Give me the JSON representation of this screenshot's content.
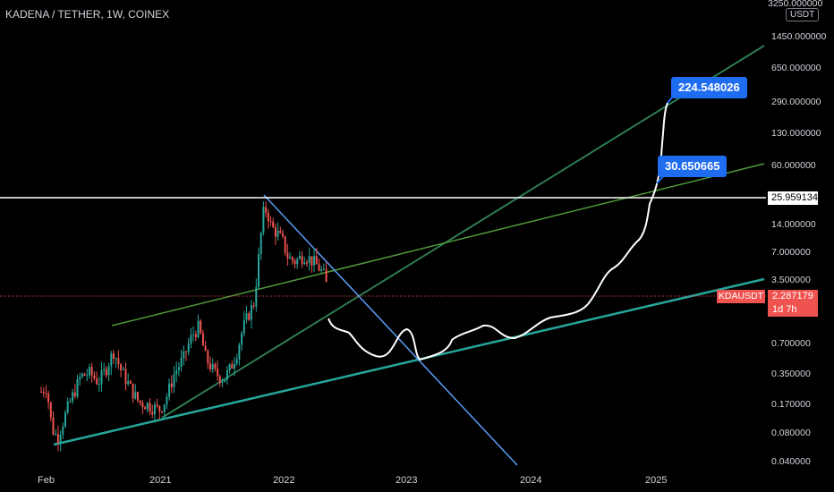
{
  "header": {
    "title": "KADENA / TETHER, 1W, COINEX"
  },
  "price_axis": {
    "currency": "USDT",
    "labels": [
      "3250.000000",
      "1450.000000",
      "650.000000",
      "290.000000",
      "130.000000",
      "60.000000",
      "14.000000",
      "7.000000",
      "3.500000",
      "0.700000",
      "0.350000",
      "0.170000",
      "0.080000",
      "0.040000"
    ]
  },
  "time_axis": {
    "labels": [
      "Feb",
      "2021",
      "2022",
      "2023",
      "2024",
      "2025"
    ]
  },
  "current_price": {
    "symbol": "KDAUSDT",
    "value": "2.287179",
    "countdown": "1d 7h",
    "color": "#ef5350"
  },
  "horizontal_level": {
    "value": "25.959134",
    "color": "#ffffff"
  },
  "callouts": [
    {
      "label": "224.548026"
    },
    {
      "label": "30.650665"
    }
  ],
  "colors": {
    "up": "#26a69a",
    "down": "#ef5350",
    "trend_green": "#2e7d52",
    "trend_teal": "#26a69a",
    "trend_blue": "#5b9cf6",
    "channel_lightgreen": "#4f9a3a"
  },
  "chart_data": {
    "type": "candlestick",
    "scale": "log",
    "title": "KADENA / TETHER, 1W, COINEX",
    "ylim": [
      0.03,
      3250
    ],
    "series": [
      {
        "name": "KDAUSDT",
        "x": [
          "2020-02",
          "2020-04",
          "2020-06",
          "2020-08",
          "2020-10",
          "2020-12",
          "2021-02",
          "2021-04",
          "2021-06",
          "2021-08",
          "2021-10",
          "2021-11",
          "2022-01",
          "2022-03",
          "2022-05"
        ],
        "values": [
          0.22,
          0.07,
          0.35,
          0.3,
          0.42,
          0.17,
          0.3,
          1.1,
          0.42,
          2.0,
          8.5,
          20,
          9,
          6,
          2.29
        ]
      },
      {
        "name": "projection",
        "x": [
          "2022-06",
          "2022-09",
          "2023-01",
          "2023-06",
          "2023-11",
          "2024-06",
          "2024-10",
          "2025-01",
          "2025-02"
        ],
        "values": [
          1.2,
          0.45,
          0.45,
          1.2,
          0.8,
          1.7,
          6,
          30.650665,
          224.548026
        ]
      }
    ]
  }
}
